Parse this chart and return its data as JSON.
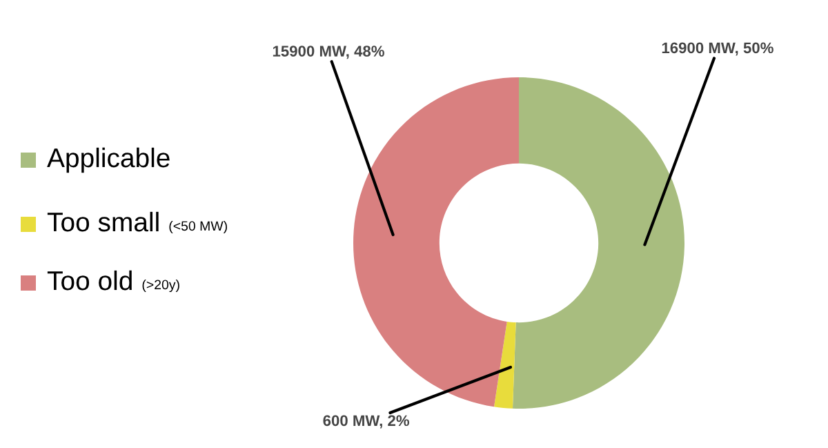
{
  "chart_data": {
    "type": "donut",
    "categories": [
      "Applicable",
      "Too small (<50 MW)",
      "Too old (>20y)"
    ],
    "values": [
      16900,
      600,
      15900
    ],
    "colors": [
      "#a8bd7f",
      "#e8dc3c",
      "#d98080"
    ],
    "value_labels": [
      "16900 MW, 50%",
      "600 MW, 2%",
      "15900 MW, 48%"
    ],
    "legend": "left"
  }
}
